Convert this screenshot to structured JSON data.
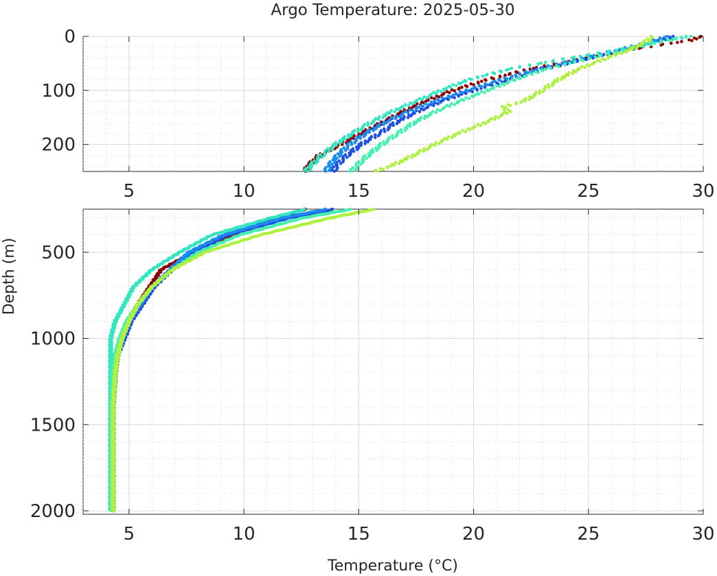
{
  "chart_data": {
    "type": "line",
    "title": "Argo Temperature: 2025-05-30",
    "xlabel": "Temperature (°C)",
    "ylabel": "Depth (m)",
    "axis_color": "#262626",
    "grid": true,
    "panels": [
      {
        "name": "upper",
        "xlim": [
          3,
          30
        ],
        "ylim": [
          0,
          250
        ],
        "y_reversed": true,
        "xticks": [
          5,
          10,
          15,
          20,
          25,
          30
        ],
        "yticks": [
          0,
          100,
          200
        ],
        "xtick_labels": [
          "5",
          "10",
          "15",
          "20",
          "25",
          "30"
        ],
        "ytick_labels": [
          "0",
          "100",
          "200"
        ],
        "marker": "dots"
      },
      {
        "name": "lower",
        "xlim": [
          3,
          30
        ],
        "ylim": [
          250,
          2020
        ],
        "y_reversed": true,
        "xticks": [
          5,
          10,
          15,
          20,
          25,
          30
        ],
        "yticks": [
          500,
          1000,
          1500,
          2000
        ],
        "xtick_labels": [
          "5",
          "10",
          "15",
          "20",
          "25",
          "30"
        ],
        "ytick_labels": [
          "500",
          "1000",
          "1500",
          "2000"
        ],
        "marker": "line"
      }
    ],
    "series": [
      {
        "name": "profile-darkred",
        "color": "#8b0000",
        "depth": [
          0,
          8,
          15,
          25,
          40,
          60,
          80,
          100,
          120,
          140,
          160,
          180,
          200,
          220,
          240,
          250,
          300,
          400,
          500,
          600,
          700,
          800,
          900,
          1000,
          1100,
          1200,
          1400,
          1600,
          1800,
          2000
        ],
        "temp": [
          29.9,
          29.4,
          28.2,
          26.8,
          25.0,
          22.5,
          20.6,
          19.1,
          17.9,
          16.9,
          16.0,
          15.1,
          14.2,
          13.3,
          12.8,
          12.7,
          11.3,
          9.6,
          7.8,
          6.4,
          5.9,
          5.4,
          5.0,
          4.7,
          4.5,
          4.4,
          4.3,
          4.3,
          4.3,
          4.3
        ]
      },
      {
        "name": "profile-blue",
        "color": "#1f4fe0",
        "depth": [
          0,
          10,
          25,
          40,
          60,
          80,
          100,
          120,
          140,
          160,
          180,
          200,
          220,
          240,
          250,
          300,
          400,
          500,
          600,
          700,
          800,
          900,
          1000,
          1100,
          1200,
          1400,
          1600,
          1800,
          2000
        ],
        "temp": [
          28.7,
          28.0,
          26.6,
          25.1,
          23.1,
          21.6,
          20.0,
          18.6,
          17.5,
          16.6,
          15.9,
          15.1,
          14.5,
          14.0,
          13.9,
          12.0,
          9.3,
          7.8,
          6.9,
          6.1,
          5.6,
          5.1,
          4.8,
          4.5,
          4.4,
          4.3,
          4.3,
          4.3,
          4.3
        ]
      },
      {
        "name": "profile-lightblue",
        "color": "#1a8cf0",
        "depth": [
          0,
          10,
          25,
          40,
          60,
          80,
          100,
          120,
          140,
          160,
          180,
          200,
          220,
          240,
          250,
          300,
          400,
          500,
          600,
          700,
          800,
          900,
          1000,
          1100,
          1200,
          1400,
          1600,
          1800,
          2000
        ],
        "temp": [
          28.4,
          27.7,
          26.3,
          24.8,
          22.8,
          21.2,
          19.7,
          18.3,
          17.1,
          16.1,
          15.3,
          14.6,
          14.1,
          13.7,
          13.6,
          11.7,
          9.1,
          7.6,
          6.8,
          6.0,
          5.5,
          5.0,
          4.7,
          4.5,
          4.4,
          4.3,
          4.3,
          4.3,
          4.3
        ]
      },
      {
        "name": "profile-cyan",
        "color": "#33e6c0",
        "depth": [
          0,
          10,
          25,
          40,
          60,
          80,
          100,
          120,
          140,
          160,
          180,
          200,
          220,
          240,
          250,
          300,
          400,
          500,
          600,
          700,
          800,
          900,
          1000,
          1100,
          1200,
          1400,
          1600,
          1800,
          2000
        ],
        "temp": [
          29.5,
          28.0,
          26.3,
          24.2,
          21.6,
          19.8,
          18.6,
          17.5,
          16.4,
          15.5,
          14.7,
          14.0,
          13.4,
          12.9,
          12.7,
          11.2,
          8.6,
          7.2,
          6.0,
          5.2,
          4.8,
          4.4,
          4.2,
          4.2,
          4.2,
          4.2,
          4.2,
          4.2,
          4.2
        ]
      },
      {
        "name": "profile-seafoam",
        "color": "#44f0b0",
        "depth": [
          0,
          10,
          25,
          40,
          60,
          80,
          100,
          120,
          140,
          160,
          180,
          200,
          220,
          240,
          250,
          300,
          400,
          500,
          600,
          700,
          800,
          900,
          1000,
          1100,
          1200,
          1400,
          1600,
          1800,
          2000
        ],
        "temp": [
          29.2,
          28.2,
          26.7,
          25.1,
          23.2,
          21.8,
          20.6,
          19.4,
          18.3,
          17.4,
          16.7,
          16.0,
          15.4,
          14.9,
          14.7,
          12.6,
          9.8,
          8.0,
          6.9,
          6.0,
          5.4,
          4.9,
          4.6,
          4.4,
          4.3,
          4.3,
          4.3,
          4.3,
          4.3
        ]
      },
      {
        "name": "profile-yellowgreen",
        "color": "#b0f040",
        "depth": [
          0,
          10,
          25,
          40,
          60,
          80,
          100,
          120,
          130,
          140,
          160,
          180,
          200,
          220,
          240,
          250,
          300,
          400,
          500,
          600,
          700,
          800,
          900,
          1000,
          1100,
          1200,
          1400,
          1600,
          1800,
          2000
        ],
        "temp": [
          27.8,
          27.5,
          26.8,
          25.8,
          24.6,
          23.7,
          23.0,
          22.2,
          21.3,
          21.5,
          20.5,
          19.3,
          18.3,
          17.4,
          16.4,
          15.7,
          13.8,
          10.7,
          8.3,
          6.9,
          6.0,
          5.4,
          5.0,
          4.7,
          4.5,
          4.4,
          4.3,
          4.3,
          4.3,
          4.3
        ]
      }
    ]
  }
}
